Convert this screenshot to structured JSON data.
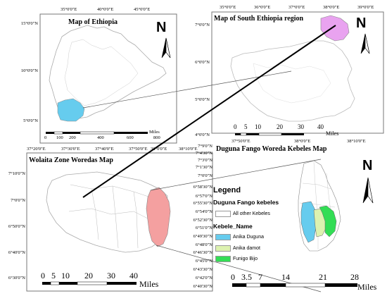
{
  "panels": {
    "ethiopia": {
      "title": "Map of Ethiopia",
      "north": "N",
      "top_ticks": [
        "35°0'0\"E",
        "40°0'0\"E",
        "45°0'0\"E"
      ],
      "left_ticks": [
        "15°0'0\"N",
        "10°0'0\"N",
        "5°0'0\"N"
      ],
      "scale_labels": [
        "0",
        "100",
        "200",
        "400",
        "600",
        "800"
      ],
      "scale_unit": "Miles",
      "highlight_color": "#66ccee"
    },
    "south": {
      "title": "Map of South Ethiopia region",
      "north": "N",
      "top_ticks": [
        "35°0'0\"E",
        "36°0'0\"E",
        "37°0'0\"E",
        "38°0'0\"E",
        "39°0'0\"E"
      ],
      "left_ticks": [
        "7°0'0\"N",
        "6°0'0\"N",
        "5°0'0\"N",
        "4°0'0\"N"
      ],
      "scale_labels": [
        "0",
        "5",
        "10",
        "20",
        "30",
        "40"
      ],
      "scale_unit": "Miles",
      "highlight_color": "#e9a3f0"
    },
    "wolaita": {
      "title": "Wolaita Zone Woredas Map",
      "top_ticks": [
        "37°20'0\"E",
        "37°30'0\"E",
        "37°40'0\"E",
        "37°50'0\"E",
        "38°0'0\"E",
        "38°10'0\"E"
      ],
      "left_ticks": [
        "7°10'0\"N",
        "7°0'0\"N",
        "6°50'0\"N",
        "6°40'0\"N",
        "6°30'0\"N"
      ],
      "scale_labels": [
        "0",
        "5",
        "10",
        "20",
        "30",
        "40"
      ],
      "scale_unit": "Miles",
      "highlight_color": "#f4a0a0"
    },
    "duguna": {
      "title": "Duguna Fango Woreda Kebeles Map",
      "north": "N",
      "top_ticks": [
        "37°50'0\"E",
        "38°0'0\"E",
        "38°10'0\"E"
      ],
      "left_ticks": [
        "7°9'0\"N",
        "7°4'30\"N",
        "7°3'0\"N",
        "7°1'30\"N",
        "7°0'0\"N",
        "6°58'30\"N",
        "6°57'0\"N",
        "6°55'30\"N",
        "6°54'0\"N",
        "6°52'30\"N",
        "6°51'0\"N",
        "6°49'30\"N",
        "6°48'0\"N",
        "6°46'30\"N",
        "6°45'0\"N",
        "6°43'30\"N",
        "6°42'0\"N",
        "6°40'30\"N"
      ],
      "scale_labels": [
        "0",
        "3.5",
        "7",
        "14",
        "21",
        "28"
      ],
      "scale_unit": "Miles"
    }
  },
  "legend": {
    "title": "Legend",
    "group": "Duguna Fango kebeles",
    "other": "All other Kebeles",
    "field": "Kebele_Name",
    "items": [
      {
        "label": "Anika  Duguna",
        "color": "#66ccee"
      },
      {
        "label": "Anika  damot",
        "color": "#ddf2b0"
      },
      {
        "label": "Funigo Bijo",
        "color": "#33dd55"
      }
    ]
  }
}
